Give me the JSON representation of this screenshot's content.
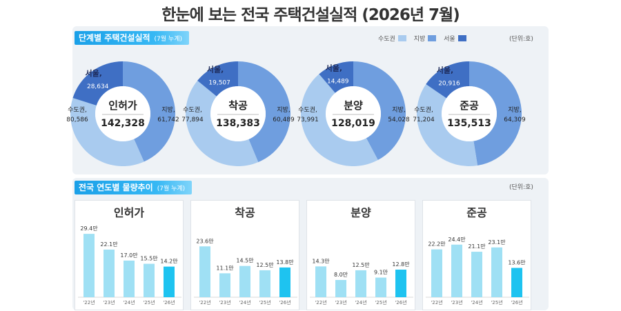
{
  "title": "한눈에 보는 전국 주택건설실적 (2026년 7월)",
  "section1": {
    "label": "단계별 주택건설실적",
    "note": "(7월 누계)"
  },
  "section2": {
    "label": "전국 연도별 물량추이",
    "note": "(7월 누계)"
  },
  "legend": [
    {
      "label": "수도권",
      "color": "#a9cbef"
    },
    {
      "label": "지방",
      "color": "#6f9edf"
    },
    {
      "label": "서울",
      "color": "#3f6fc4"
    }
  ],
  "unit_top": "(단위:호)",
  "unit_bottom": "(단위:호)",
  "labels": {
    "capital": "수도권,",
    "local": "지방,",
    "seoul": "서울,"
  },
  "colors": {
    "capital": "#a9cbef",
    "local": "#6f9edf",
    "seoul": "#3f6fc4",
    "bar": "#9fe0f4",
    "bar_current": "#1ec3f0"
  },
  "chart_data": [
    {
      "type": "pie",
      "name": "인허가",
      "total": "142,328",
      "slices": [
        {
          "label": "수도권",
          "value": 80586,
          "display": "80,586"
        },
        {
          "label": "지방",
          "value": 61742,
          "display": "61,742"
        }
      ],
      "seoul": {
        "label": "서울",
        "value": 28634,
        "display": "28,634"
      }
    },
    {
      "type": "pie",
      "name": "착공",
      "total": "138,383",
      "slices": [
        {
          "label": "수도권",
          "value": 77894,
          "display": "77,894"
        },
        {
          "label": "지방",
          "value": 60489,
          "display": "60,489"
        }
      ],
      "seoul": {
        "label": "서울",
        "value": 19507,
        "display": "19,507"
      }
    },
    {
      "type": "pie",
      "name": "분양",
      "total": "128,019",
      "slices": [
        {
          "label": "수도권",
          "value": 73991,
          "display": "73,991"
        },
        {
          "label": "지방",
          "value": 54028,
          "display": "54,028"
        }
      ],
      "seoul": {
        "label": "서울",
        "value": 14489,
        "display": "14,489"
      }
    },
    {
      "type": "pie",
      "name": "준공",
      "total": "135,513",
      "slices": [
        {
          "label": "수도권",
          "value": 71204,
          "display": "71,204"
        },
        {
          "label": "지방",
          "value": 64309,
          "display": "64,309"
        }
      ],
      "seoul": {
        "label": "서울",
        "value": 20916,
        "display": "20,916"
      }
    },
    {
      "type": "bar",
      "title": "인허가",
      "categories": [
        "'22년",
        "'23년",
        "'24년",
        "'25년",
        "'26년"
      ],
      "values": [
        29.4,
        22.1,
        17.0,
        15.5,
        14.2
      ],
      "value_labels": [
        "29.4만",
        "22.1만",
        "17.0만",
        "15.5만",
        "14.2만"
      ]
    },
    {
      "type": "bar",
      "title": "착공",
      "categories": [
        "'22년",
        "'23년",
        "'24년",
        "'25년",
        "'26년"
      ],
      "values": [
        23.6,
        11.1,
        14.5,
        12.5,
        13.8
      ],
      "value_labels": [
        "23.6만",
        "11.1만",
        "14.5만",
        "12.5만",
        "13.8만"
      ]
    },
    {
      "type": "bar",
      "title": "분양",
      "categories": [
        "'22년",
        "'23년",
        "'24년",
        "'25년",
        "'26년"
      ],
      "values": [
        14.3,
        8.0,
        12.5,
        9.1,
        12.8
      ],
      "value_labels": [
        "14.3만",
        "8.0만",
        "12.5만",
        "9.1만",
        "12.8만"
      ]
    },
    {
      "type": "bar",
      "title": "준공",
      "categories": [
        "'22년",
        "'23년",
        "'24년",
        "'25년",
        "'26년"
      ],
      "values": [
        22.2,
        24.4,
        21.1,
        23.1,
        13.6
      ],
      "value_labels": [
        "22.2만",
        "24.4만",
        "21.1만",
        "23.1만",
        "13.6만"
      ]
    }
  ]
}
